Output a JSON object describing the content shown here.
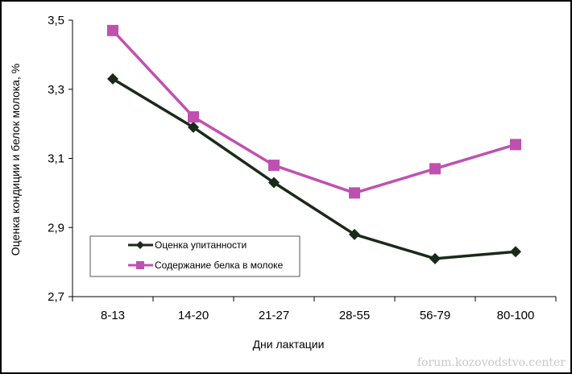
{
  "chart_data": {
    "type": "line",
    "categories": [
      "8-13",
      "14-20",
      "21-27",
      "28-55",
      "56-79",
      "80-100"
    ],
    "series": [
      {
        "name": "Оценка упитанности",
        "values": [
          3.33,
          3.19,
          3.03,
          2.88,
          2.81,
          2.83
        ],
        "color": "#1a2a1a",
        "marker": "diamond"
      },
      {
        "name": "Содержание белка в молоке",
        "values": [
          3.47,
          3.22,
          3.08,
          3.0,
          3.07,
          3.14
        ],
        "color": "#c050b0",
        "marker": "square"
      }
    ],
    "xlabel": "Дни лактации",
    "ylabel": "Оценка кондиции и белок молока, %",
    "ylim": [
      2.7,
      3.5
    ],
    "yticks": [
      "2,7",
      "2,9",
      "3,1",
      "3,3",
      "3,5"
    ],
    "ytick_values": [
      2.7,
      2.9,
      3.1,
      3.3,
      3.5
    ],
    "grid": false,
    "legend_placement": "bottom-left"
  },
  "watermark": "forum.kozovodstvo.center"
}
